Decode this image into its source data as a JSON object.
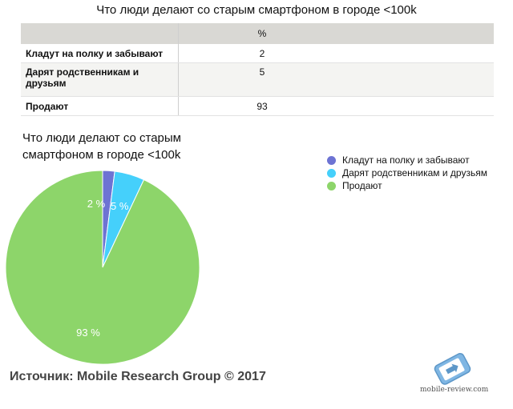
{
  "table": {
    "title": "Что люди делают со старым смартфоном в городе <100k",
    "header": [
      "",
      "%"
    ],
    "rows": [
      {
        "label": "Кладут на полку и забывают",
        "value": "2"
      },
      {
        "label": "Дарят родственникам и друзьям",
        "value": "5"
      },
      {
        "label": "Продают",
        "value": "93"
      }
    ]
  },
  "chart_data": {
    "type": "pie",
    "title": "Что люди делают со старым смартфоном в городе <100k",
    "categories": [
      "Кладут на полку и забывают",
      "Дарят родственникам и друзьям",
      "Продают"
    ],
    "values": [
      2,
      5,
      93
    ],
    "labels": [
      "2 %",
      "5 %",
      "93 %"
    ],
    "colors": [
      "#6d73d3",
      "#45d0fb",
      "#8dd56a"
    ],
    "legend": "right"
  },
  "footer": {
    "source": "Источник: Mobile Research Group © 2017",
    "logo_text": "mobile-review.com"
  }
}
